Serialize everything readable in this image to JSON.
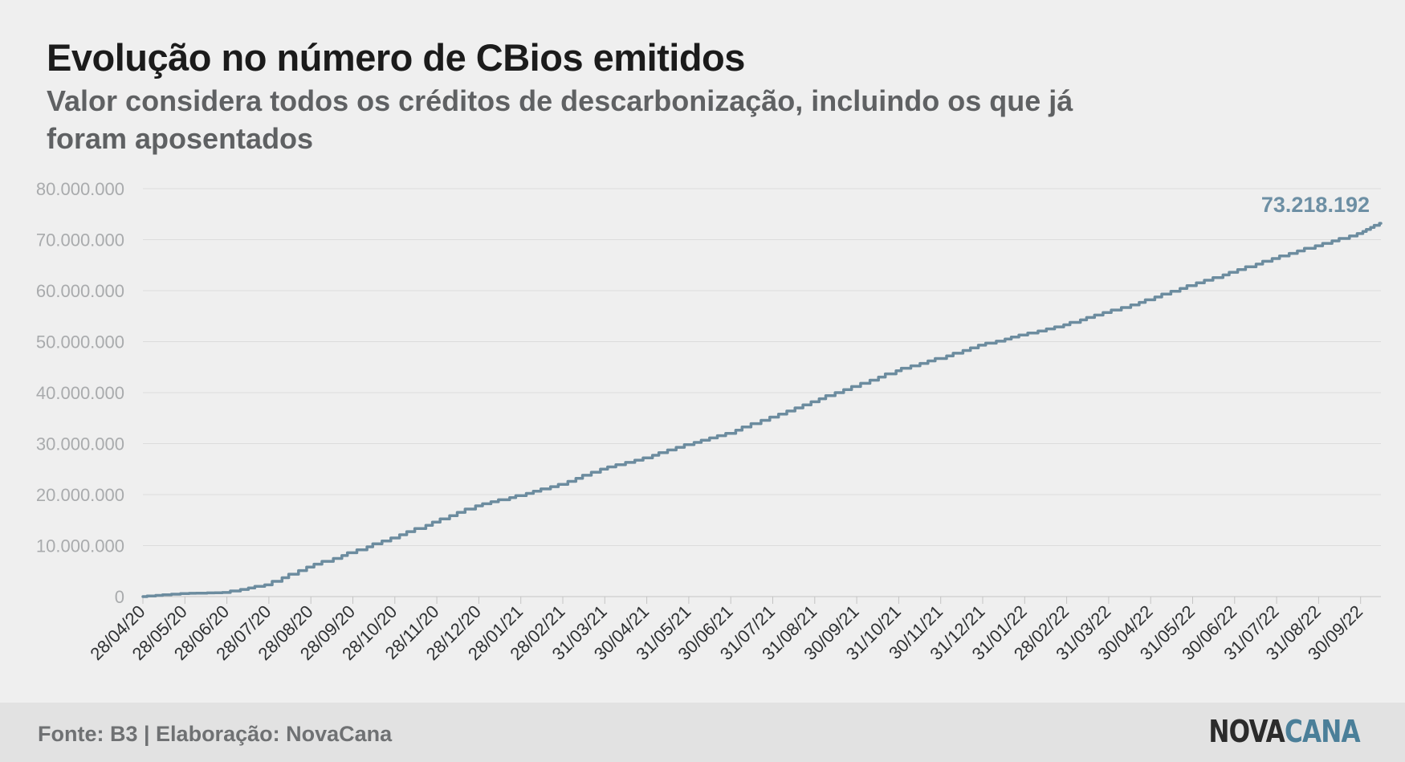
{
  "header": {
    "title": "Evolução no número de CBios emitidos",
    "subtitle": "Valor considera todos os créditos de descarbonização, incluindo os que já foram aposentados"
  },
  "footer": {
    "source": "Fonte: B3 | Elaboração: NovaCana",
    "logo_part1": "NOVA",
    "logo_part2": "CANA"
  },
  "colors": {
    "line": "#6c8c9f",
    "grid": "#dcdcdc",
    "logo_accent": "#4b7f99"
  },
  "chart_data": {
    "type": "line",
    "title": "Evolução no número de CBios emitidos",
    "subtitle": "Valor considera todos os créditos de descarbonização, incluindo os que já foram aposentados",
    "xlabel": "",
    "ylabel": "",
    "ylim": [
      0,
      80000000
    ],
    "y_ticks": [
      0,
      10000000,
      20000000,
      30000000,
      40000000,
      50000000,
      60000000,
      70000000,
      80000000
    ],
    "y_tick_labels": [
      "0",
      "10.000.000",
      "20.000.000",
      "30.000.000",
      "40.000.000",
      "50.000.000",
      "60.000.000",
      "70.000.000",
      "80.000.000"
    ],
    "x_tick_labels": [
      "28/04/20",
      "28/05/20",
      "28/06/20",
      "28/07/20",
      "28/08/20",
      "28/09/20",
      "28/10/20",
      "28/11/20",
      "28/12/20",
      "28/01/21",
      "28/02/21",
      "31/03/21",
      "30/04/21",
      "31/05/21",
      "30/06/21",
      "31/07/21",
      "31/08/21",
      "30/09/21",
      "31/10/21",
      "30/11/21",
      "31/12/21",
      "31/01/22",
      "28/02/22",
      "31/03/22",
      "30/04/22",
      "31/05/22",
      "30/06/22",
      "31/07/22",
      "31/08/22",
      "30/09/22"
    ],
    "grid": true,
    "legend": "none",
    "end_label": "73.218.192",
    "series": [
      {
        "x": [
          "28/04/20",
          "28/05/20",
          "28/06/20",
          "28/07/20",
          "28/08/20",
          "28/09/20",
          "28/10/20",
          "28/11/20",
          "28/12/20",
          "28/01/21",
          "28/02/21",
          "31/03/21",
          "30/04/21",
          "31/05/21",
          "30/06/21",
          "31/07/21",
          "31/08/21",
          "30/09/21",
          "31/10/21",
          "30/11/21",
          "31/12/21",
          "31/01/22",
          "28/02/22",
          "31/03/22",
          "30/04/22",
          "31/05/22",
          "30/06/22",
          "31/07/22",
          "31/08/22",
          "30/09/22",
          "20/10/22"
        ],
        "values": [
          0,
          600000,
          800000,
          2300000,
          5800000,
          8600000,
          11500000,
          14600000,
          17800000,
          19800000,
          22000000,
          25000000,
          27200000,
          29800000,
          32000000,
          35200000,
          38200000,
          41200000,
          44300000,
          46700000,
          49300000,
          51300000,
          53300000,
          55700000,
          58200000,
          61000000,
          63600000,
          66300000,
          68800000,
          71200000,
          73218192
        ]
      }
    ]
  }
}
